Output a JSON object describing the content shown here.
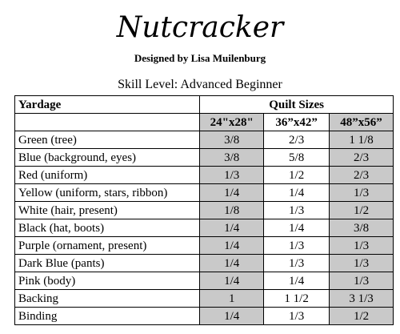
{
  "header": {
    "title": "Nutcracker",
    "designer": "Designed by Lisa Muilenburg",
    "skill_level": "Skill Level: Advanced Beginner"
  },
  "table": {
    "label_header": "Yardage",
    "sizes_header": "Quilt Sizes",
    "sizes": [
      "24\"x28\"",
      "36”x42”",
      "48”x56”"
    ],
    "rows": [
      [
        "Green (tree)",
        "3/8",
        "2/3",
        "1 1/8"
      ],
      [
        "Blue (background, eyes)",
        "3/8",
        "5/8",
        "2/3"
      ],
      [
        "Red (uniform)",
        "1/3",
        "1/2",
        "2/3"
      ],
      [
        "Yellow (uniform, stars, ribbon)",
        "1/4",
        "1/4",
        "1/3"
      ],
      [
        "White (hair, present)",
        "1/8",
        "1/3",
        "1/2"
      ],
      [
        "Black (hat, boots)",
        "1/4",
        "1/4",
        "3/8"
      ],
      [
        "Purple (ornament, present)",
        "1/4",
        "1/3",
        "1/3"
      ],
      [
        "Dark Blue (pants)",
        "1/4",
        "1/3",
        "1/3"
      ],
      [
        "Pink (body)",
        "1/4",
        "1/4",
        "1/3"
      ],
      [
        "Backing",
        "1",
        "1 1/2",
        "3 1/3"
      ],
      [
        "Binding",
        "1/4",
        "1/3",
        "1/2"
      ]
    ]
  }
}
